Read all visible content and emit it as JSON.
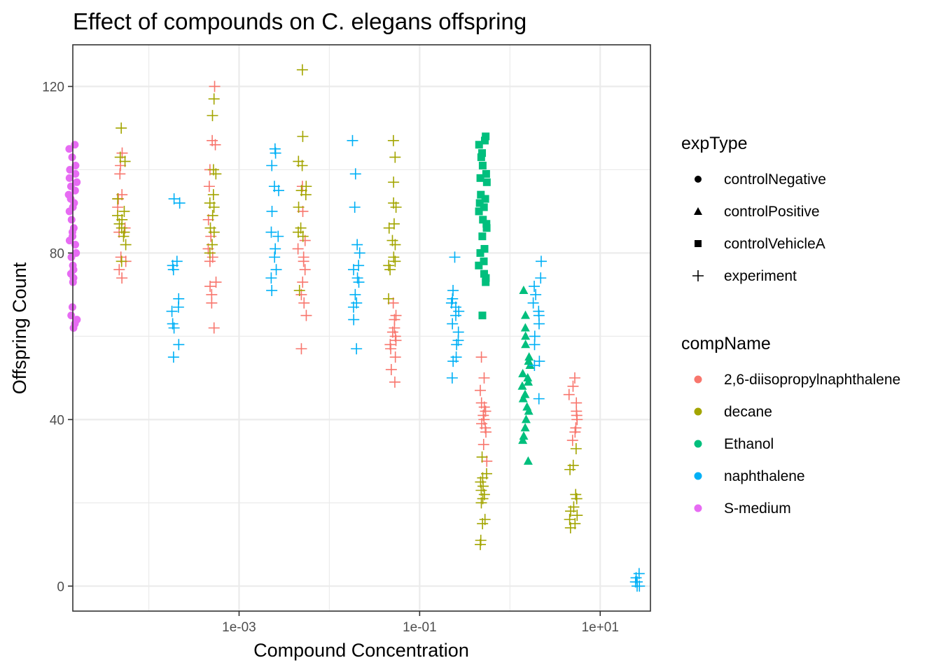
{
  "chart_data": {
    "type": "scatter",
    "title": "Effect of compounds on C. elegans offspring",
    "xlabel": "Compound Concentration",
    "ylabel": "Offspring Count",
    "x_scale": "log10",
    "xlim": [
      1.44e-05,
      36
    ],
    "ylim": [
      -6,
      130
    ],
    "x_ticks": [
      {
        "value": 0.001,
        "label": "1e-03"
      },
      {
        "value": 0.1,
        "label": "1e-01"
      },
      {
        "value": 10,
        "label": "1e+01"
      }
    ],
    "y_ticks": [
      {
        "value": 0,
        "label": "0"
      },
      {
        "value": 40,
        "label": "40"
      },
      {
        "value": 80,
        "label": "80"
      },
      {
        "value": 120,
        "label": "120"
      }
    ],
    "grid": true,
    "legend_position": "right",
    "legends": [
      {
        "title": "expType",
        "entries": [
          {
            "label": "controlNegative",
            "shape": "circle"
          },
          {
            "label": "controlPositive",
            "shape": "triangle"
          },
          {
            "label": "controlVehicleA",
            "shape": "square"
          },
          {
            "label": "experiment",
            "shape": "plus"
          }
        ]
      },
      {
        "title": "compName",
        "entries": [
          {
            "label": "2,6-diisopropylnaphthalene",
            "color": "#F8766D"
          },
          {
            "label": "decane",
            "color": "#A3A500"
          },
          {
            "label": "Ethanol",
            "color": "#00BF7D"
          },
          {
            "label": "naphthalene",
            "color": "#00B0F6"
          },
          {
            "label": "S-medium",
            "color": "#E76BF3"
          }
        ]
      }
    ],
    "groups": [
      {
        "compName": "S-medium",
        "expType": "controlNegative",
        "x": 1.44e-05,
        "values": [
          106,
          105,
          103,
          101,
          100,
          99,
          98,
          97,
          96,
          95,
          94,
          93,
          92,
          91,
          90,
          88,
          86,
          85,
          84,
          83,
          82,
          80,
          79,
          77,
          76,
          75,
          74,
          73,
          67,
          65,
          64,
          63,
          62
        ]
      },
      {
        "compName": "2,6-diisopropylnaphthalene",
        "expType": "experiment",
        "x": 5e-05,
        "values": [
          104,
          101,
          99,
          94,
          93,
          91,
          86,
          85,
          79,
          78,
          76,
          74
        ]
      },
      {
        "compName": "decane",
        "expType": "experiment",
        "x": 5e-05,
        "values": [
          110,
          103,
          102,
          93,
          90,
          89,
          88,
          87,
          86,
          85,
          84,
          82,
          78
        ]
      },
      {
        "compName": "naphthalene",
        "expType": "experiment",
        "x": 0.0002,
        "values": [
          93,
          92,
          78,
          77,
          76,
          69,
          67,
          66,
          63,
          62,
          58,
          55
        ]
      },
      {
        "compName": "2,6-diisopropylnaphthalene",
        "expType": "experiment",
        "x": 0.0005,
        "values": [
          120,
          107,
          106,
          100,
          96,
          88,
          84,
          81,
          79,
          78,
          73,
          72,
          70,
          68,
          62
        ]
      },
      {
        "compName": "decane",
        "expType": "experiment",
        "x": 0.0005,
        "values": [
          117,
          113,
          100,
          99,
          94,
          92,
          91,
          89,
          86,
          85,
          82,
          80
        ]
      },
      {
        "compName": "naphthalene",
        "expType": "experiment",
        "x": 0.0025,
        "values": [
          105,
          104,
          101,
          96,
          95,
          90,
          85,
          84,
          81,
          79,
          76,
          74,
          71
        ]
      },
      {
        "compName": "2,6-diisopropylnaphthalene",
        "expType": "experiment",
        "x": 0.005,
        "values": [
          96,
          90,
          83,
          81,
          79,
          78,
          76,
          73,
          70,
          68,
          65,
          57
        ]
      },
      {
        "compName": "decane",
        "expType": "experiment",
        "x": 0.005,
        "values": [
          124,
          108,
          102,
          101,
          96,
          95,
          94,
          91,
          86,
          85,
          84,
          71
        ]
      },
      {
        "compName": "naphthalene",
        "expType": "experiment",
        "x": 0.02,
        "values": [
          107,
          99,
          91,
          82,
          80,
          77,
          76,
          74,
          73,
          70,
          68,
          67,
          64,
          57
        ]
      },
      {
        "compName": "2,6-diisopropylnaphthalene",
        "expType": "experiment",
        "x": 0.05,
        "values": [
          68,
          65,
          64,
          62,
          61,
          60,
          59,
          58,
          57,
          55,
          52,
          49
        ]
      },
      {
        "compName": "decane",
        "expType": "experiment",
        "x": 0.05,
        "values": [
          107,
          103,
          97,
          92,
          91,
          87,
          86,
          83,
          82,
          79,
          78,
          77,
          76,
          69
        ]
      },
      {
        "compName": "naphthalene",
        "expType": "experiment",
        "x": 0.25,
        "values": [
          79,
          71,
          69,
          68,
          67,
          66,
          65,
          63,
          61,
          59,
          58,
          55,
          54,
          50
        ]
      },
      {
        "compName": "Ethanol",
        "expType": "controlVehicleA",
        "x": 0.5,
        "values": [
          108,
          107,
          106,
          104,
          103,
          101,
          99,
          98,
          97,
          94,
          93,
          92,
          91,
          90,
          88,
          87,
          86,
          84,
          81,
          80,
          78,
          77,
          75,
          74,
          73,
          65
        ]
      },
      {
        "compName": "2,6-diisopropylnaphthalene",
        "expType": "experiment",
        "x": 0.5,
        "values": [
          55,
          50,
          47,
          44,
          43,
          42,
          41,
          40,
          39,
          38,
          37,
          34,
          30
        ]
      },
      {
        "compName": "decane",
        "expType": "experiment",
        "x": 0.5,
        "values": [
          31,
          27,
          26,
          25,
          24,
          23,
          22,
          21,
          20,
          16,
          15,
          11,
          10
        ]
      },
      {
        "compName": "Ethanol",
        "expType": "controlPositive",
        "x": 1.5,
        "values": [
          71,
          65,
          62,
          60,
          58,
          55,
          54,
          53,
          51,
          50,
          49,
          48,
          46,
          45,
          43,
          42,
          40,
          38,
          36,
          35,
          30
        ]
      },
      {
        "compName": "naphthalene",
        "expType": "experiment",
        "x": 2,
        "values": [
          78,
          74,
          72,
          70,
          68,
          66,
          65,
          63,
          60,
          58,
          54,
          53,
          45
        ]
      },
      {
        "compName": "2,6-diisopropylnaphthalene",
        "expType": "experiment",
        "x": 5,
        "values": [
          50,
          48,
          46,
          44,
          42,
          41,
          40,
          38,
          37,
          35
        ]
      },
      {
        "compName": "decane",
        "expType": "experiment",
        "x": 5,
        "values": [
          33,
          29,
          28,
          22,
          21,
          19,
          18,
          17,
          16,
          15,
          14
        ]
      },
      {
        "compName": "naphthalene",
        "expType": "experiment",
        "x": 25,
        "values": [
          3,
          2,
          1,
          1,
          0,
          0
        ]
      }
    ]
  }
}
